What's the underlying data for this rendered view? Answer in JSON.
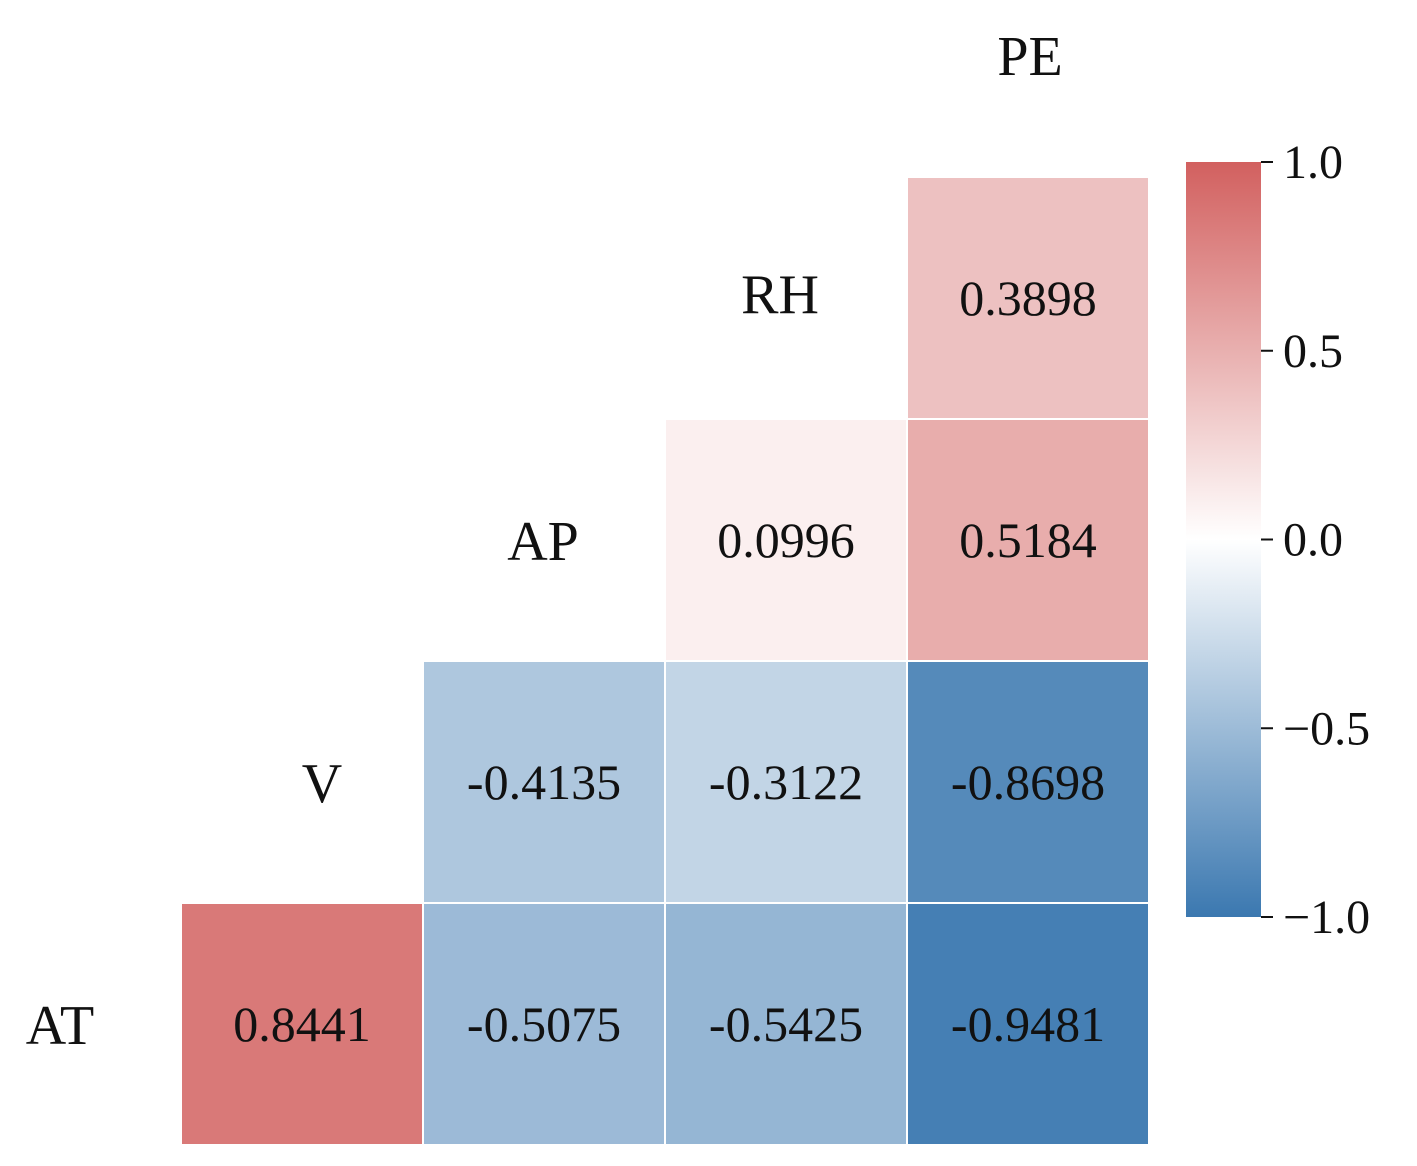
{
  "chart_data": {
    "type": "heatmap",
    "variables": [
      "AT",
      "V",
      "AP",
      "RH",
      "PE"
    ],
    "cells": [
      {
        "row": "AT",
        "col": "V",
        "value": 0.8441,
        "label": "0.8441"
      },
      {
        "row": "AT",
        "col": "AP",
        "value": -0.5075,
        "label": "-0.5075"
      },
      {
        "row": "AT",
        "col": "RH",
        "value": -0.5425,
        "label": "-0.5425"
      },
      {
        "row": "AT",
        "col": "PE",
        "value": -0.9481,
        "label": "-0.9481"
      },
      {
        "row": "V",
        "col": "AP",
        "value": -0.4135,
        "label": "-0.4135"
      },
      {
        "row": "V",
        "col": "RH",
        "value": -0.3122,
        "label": "-0.3122"
      },
      {
        "row": "V",
        "col": "PE",
        "value": -0.8698,
        "label": "-0.8698"
      },
      {
        "row": "AP",
        "col": "RH",
        "value": 0.0996,
        "label": "0.0996"
      },
      {
        "row": "AP",
        "col": "PE",
        "value": 0.5184,
        "label": "0.5184"
      },
      {
        "row": "RH",
        "col": "PE",
        "value": 0.3898,
        "label": "0.3898"
      }
    ],
    "colorbar": {
      "range": [
        -1.0,
        1.0
      ],
      "ticks": [
        1.0,
        0.5,
        0.0,
        -0.5,
        -1.0
      ],
      "tick_labels": [
        "1.0",
        "0.5",
        "0.0",
        "−0.5",
        "−1.0"
      ],
      "colors": {
        "low": "#3b78b0",
        "mid": "#ffffff",
        "high": "#d2605f"
      }
    }
  }
}
